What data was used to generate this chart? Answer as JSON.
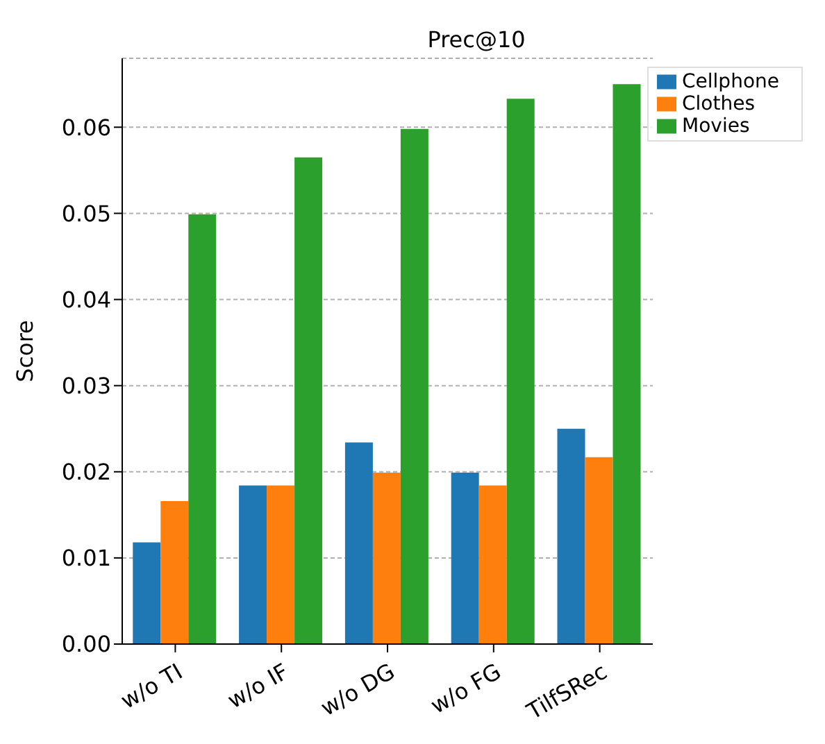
{
  "chart_data": {
    "type": "bar",
    "title": "Prec@10",
    "ylabel": "Score",
    "categories": [
      "w/o TI",
      "w/o IF",
      "w/o DG",
      "w/o FG",
      "TilfSRec"
    ],
    "series": [
      {
        "name": "Cellphone",
        "color": "#1f77b4",
        "values": [
          0.0118,
          0.0184,
          0.0234,
          0.0199,
          0.025
        ]
      },
      {
        "name": "Clothes",
        "color": "#ff7f0e",
        "values": [
          0.0166,
          0.0184,
          0.0199,
          0.0184,
          0.0217
        ]
      },
      {
        "name": "Movies",
        "color": "#2ca02c",
        "values": [
          0.0499,
          0.0565,
          0.0598,
          0.0633,
          0.065
        ]
      }
    ],
    "ylim": [
      0,
      0.068
    ],
    "yticks": [
      {
        "value": 0,
        "label": "0.00"
      },
      0.01,
      0.02,
      0.03,
      0.04,
      0.05,
      0.06
    ],
    "grid": "y",
    "legend": "top right"
  }
}
